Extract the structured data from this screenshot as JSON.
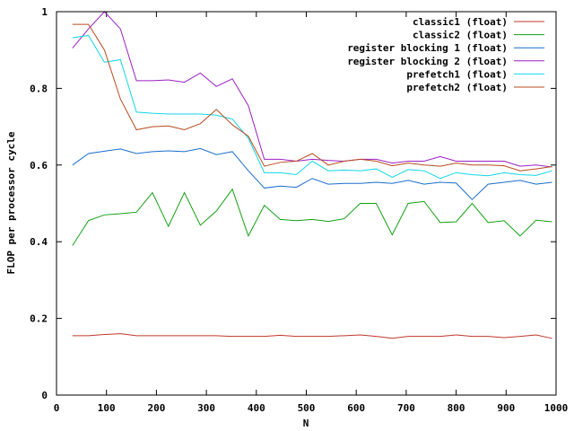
{
  "chart_data": {
    "type": "line",
    "title": "",
    "xlabel": "N",
    "ylabel": "FLOP per processor cycle",
    "xlim": [
      0,
      1000
    ],
    "ylim": [
      0,
      1
    ],
    "xticks": [
      0,
      100,
      200,
      300,
      400,
      500,
      600,
      700,
      800,
      900,
      1000
    ],
    "xtick_labels": [
      "0",
      "100",
      "200",
      "300",
      "400",
      "500",
      "600",
      "700",
      "800",
      "900",
      "1000"
    ],
    "yticks": [
      0,
      0.2,
      0.4,
      0.6,
      0.8,
      1
    ],
    "ytick_labels": [
      "0",
      "0.2",
      "0.4",
      "0.6",
      "0.8",
      "1"
    ],
    "grid": false,
    "legend_position": "top-right",
    "x": [
      32,
      64,
      96,
      128,
      160,
      192,
      224,
      256,
      288,
      320,
      352,
      384,
      416,
      448,
      480,
      512,
      544,
      576,
      608,
      640,
      672,
      704,
      736,
      768,
      800,
      832,
      864,
      896,
      928,
      960,
      992
    ],
    "series": [
      {
        "name": "classic1 (float)",
        "color": "#c0392b",
        "values": [
          0.155,
          0.155,
          0.158,
          0.16,
          0.155,
          0.155,
          0.155,
          0.155,
          0.155,
          0.155,
          0.153,
          0.153,
          0.153,
          0.156,
          0.153,
          0.153,
          0.153,
          0.155,
          0.157,
          0.153,
          0.148,
          0.153,
          0.153,
          0.153,
          0.157,
          0.153,
          0.153,
          0.15,
          0.153,
          0.157,
          0.148
        ]
      },
      {
        "name": "classic2 (float)",
        "color": "#13a013",
        "values": [
          0.39,
          0.455,
          0.47,
          0.473,
          0.477,
          0.528,
          0.44,
          0.528,
          0.443,
          0.48,
          0.537,
          0.415,
          0.495,
          0.458,
          0.455,
          0.458,
          0.453,
          0.46,
          0.5,
          0.5,
          0.418,
          0.5,
          0.505,
          0.45,
          0.452,
          0.5,
          0.45,
          0.455,
          0.415,
          0.456,
          0.452
        ]
      },
      {
        "name": "register blocking 1 (float)",
        "color": "#1a6dcc",
        "values": [
          0.6,
          0.63,
          0.636,
          0.642,
          0.63,
          0.635,
          0.637,
          0.635,
          0.643,
          0.627,
          0.635,
          0.585,
          0.54,
          0.545,
          0.542,
          0.565,
          0.55,
          0.552,
          0.552,
          0.555,
          0.552,
          0.56,
          0.55,
          0.555,
          0.553,
          0.51,
          0.55,
          0.555,
          0.56,
          0.55,
          0.555
        ]
      },
      {
        "name": "register blocking 2 (float)",
        "color": "#9b1fc4",
        "values": [
          0.905,
          0.955,
          1.0,
          0.955,
          0.82,
          0.82,
          0.822,
          0.816,
          0.84,
          0.805,
          0.825,
          0.755,
          0.615,
          0.615,
          0.61,
          0.615,
          0.612,
          0.61,
          0.615,
          0.615,
          0.605,
          0.61,
          0.61,
          0.622,
          0.61,
          0.61,
          0.61,
          0.61,
          0.597,
          0.6,
          0.595
        ]
      },
      {
        "name": "prefetch1 (float)",
        "color": "#11d6e8",
        "values": [
          0.932,
          0.938,
          0.868,
          0.875,
          0.738,
          0.735,
          0.733,
          0.733,
          0.733,
          0.73,
          0.72,
          0.67,
          0.58,
          0.58,
          0.575,
          0.61,
          0.585,
          0.587,
          0.585,
          0.59,
          0.568,
          0.588,
          0.585,
          0.565,
          0.58,
          0.575,
          0.572,
          0.58,
          0.575,
          0.573,
          0.585
        ]
      },
      {
        "name": "prefetch2 (float)",
        "color": "#b84a1c",
        "values": [
          0.967,
          0.967,
          0.9,
          0.772,
          0.692,
          0.7,
          0.702,
          0.692,
          0.708,
          0.745,
          0.705,
          0.675,
          0.597,
          0.607,
          0.61,
          0.63,
          0.6,
          0.61,
          0.615,
          0.61,
          0.598,
          0.605,
          0.6,
          0.597,
          0.605,
          0.6,
          0.6,
          0.598,
          0.585,
          0.59,
          0.596
        ]
      }
    ]
  }
}
